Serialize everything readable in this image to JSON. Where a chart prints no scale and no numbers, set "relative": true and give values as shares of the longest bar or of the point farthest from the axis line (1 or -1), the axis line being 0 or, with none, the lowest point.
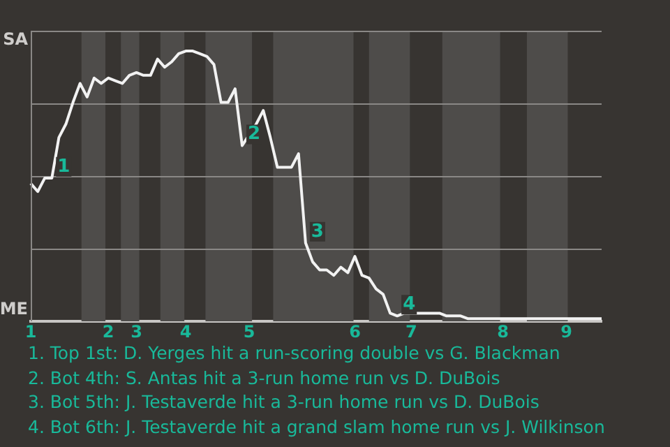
{
  "chart_data": {
    "type": "line",
    "relative": true,
    "categories": [
      "1",
      null,
      null,
      null,
      null,
      null,
      null,
      null,
      null,
      null,
      null,
      "2",
      null,
      null,
      null,
      "3",
      null,
      null,
      null,
      null,
      null,
      null,
      "4",
      null,
      null,
      null,
      null,
      null,
      null,
      null,
      null,
      "5",
      null,
      null,
      null,
      null,
      null,
      null,
      null,
      null,
      null,
      null,
      null,
      null,
      null,
      null,
      "6",
      null,
      null,
      null,
      null,
      null,
      null,
      null,
      "7",
      null,
      null,
      null,
      null,
      null,
      null,
      null,
      null,
      null,
      null,
      null,
      null,
      "8",
      null,
      null,
      null,
      null,
      null,
      null,
      null,
      null,
      "9",
      null,
      null,
      null,
      null,
      null
    ],
    "series": [
      {
        "color": "#f2f2f2",
        "values": [
          0.51,
          0.48,
          0.53,
          0.53,
          0.68,
          0.73,
          0.81,
          0.88,
          0.83,
          0.9,
          0.88,
          0.9,
          0.89,
          0.88,
          0.91,
          0.92,
          0.91,
          0.91,
          0.97,
          0.94,
          0.96,
          0.99,
          1,
          1,
          0.99,
          0.98,
          0.95,
          0.81,
          0.81,
          0.86,
          0.65,
          0.69,
          0.73,
          0.78,
          0.68,
          0.57,
          0.57,
          0.57,
          0.62,
          0.29,
          0.22,
          0.19,
          0.19,
          0.17,
          0.2,
          0.18,
          0.24,
          0.17,
          0.16,
          0.12,
          0.1,
          0.03,
          0.02,
          0.03,
          0.03,
          0.03,
          0.03,
          0.03,
          0.03,
          0.02,
          0.02,
          0.02,
          0.01,
          0.01,
          0.01,
          0.01,
          0.01,
          0.01,
          0.01,
          0.01,
          0.01,
          0.01,
          0.01,
          0.01,
          0.01,
          0.01,
          0.01,
          0.01,
          0.01,
          0.01,
          0.01,
          0.01
        ]
      }
    ],
    "grid": "y",
    "legend": false,
    "marker": "none",
    "line_style": "solid",
    "annotations": [
      "SA",
      "ME",
      "1",
      "2",
      "3",
      "4",
      "1. Top 1st: D. Yerges hit a run-scoring double vs G. Blackman",
      "2. Bot 4th: S. Antas hit a 3-run home run vs D. DuBois",
      "3. Bot 5th: J. Testaverde hit a 3-run home run vs D. DuBois",
      "4. Bot 6th: J. Testaverde hit a grand slam home run vs J. Wilkinson"
    ]
  }
}
